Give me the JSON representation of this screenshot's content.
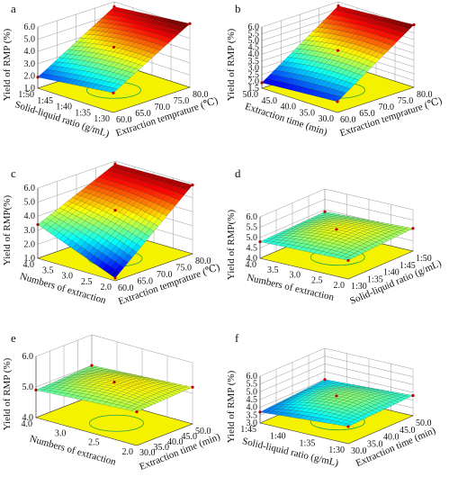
{
  "chart_data": [
    {
      "type": "surface3d",
      "panel_label": "a",
      "zlabel": "Yield of RMP (%)",
      "xlabel": "Solid-liquid ratio (g/mL)",
      "ylabel": "Extraction temprature (℃)",
      "x_ticks": [
        "1:50",
        "1:45",
        "1:40",
        "1:35",
        "1:30"
      ],
      "y_ticks": [
        "60.0",
        "65.0",
        "70.0",
        "75.0",
        "80.0"
      ],
      "z_ticks": [
        "1.0",
        "2.0",
        "3.0",
        "4.0",
        "5.0",
        "6.0"
      ],
      "zlim": [
        1.0,
        6.0
      ],
      "corner_values": {
        "x_lo_y_lo": 1.9,
        "x_hi_y_lo": 2.6,
        "x_lo_y_hi": 5.6,
        "x_hi_y_hi": 6.2
      },
      "curvature": 0.4
    },
    {
      "type": "surface3d",
      "panel_label": "b",
      "zlabel": "Yield of RMP (%)",
      "xlabel": "Extraction time (min)",
      "ylabel": "Extraction temprature (℃)",
      "x_ticks": [
        "50.0",
        "45.0",
        "40.0",
        "35.0",
        "30.0"
      ],
      "y_ticks": [
        "60.0",
        "65.0",
        "70.0",
        "75.0",
        "80.0"
      ],
      "z_ticks": [
        "1.5",
        "2.0",
        "2.5",
        "3.0",
        "3.5",
        "4.0",
        "4.5",
        "5.0",
        "5.5",
        "6.0"
      ],
      "zlim": [
        1.5,
        6.0
      ],
      "corner_values": {
        "x_lo_y_lo": 1.9,
        "x_hi_y_lo": 2.3,
        "x_lo_y_hi": 5.7,
        "x_hi_y_hi": 6.1
      },
      "curvature": 0.4
    },
    {
      "type": "surface3d",
      "panel_label": "c",
      "zlabel": "Yield of RMP(%)",
      "xlabel": "Numbers of extraction",
      "ylabel": "Extraction temprature (℃)",
      "x_ticks": [
        "4.0",
        "3.5",
        "3.0",
        "2.5",
        "2.0"
      ],
      "y_ticks": [
        "60.0",
        "65.0",
        "70.0",
        "75.0",
        "80.0"
      ],
      "z_ticks": [
        "1.0",
        "2.0",
        "3.0",
        "4.0",
        "5.0",
        "6.0"
      ],
      "zlim": [
        1.0,
        6.0
      ],
      "corner_values": {
        "x_lo_y_lo": 3.4,
        "x_hi_y_lo": 1.2,
        "x_lo_y_hi": 5.8,
        "x_hi_y_hi": 5.9
      },
      "curvature": 0.3
    },
    {
      "type": "surface3d",
      "panel_label": "d",
      "zlabel": "Yield of RMP(%)",
      "xlabel": "Numbers of extraction",
      "ylabel": "Solid-liquid ratio (g/mL)",
      "x_ticks": [
        "4.0",
        "3.5",
        "3.0",
        "2.5",
        "2.0"
      ],
      "y_ticks": [
        "1:30",
        "1:35",
        "1:40",
        "1:45",
        "1:50"
      ],
      "z_ticks": [
        "4.0",
        "4.5",
        "5.0",
        "5.5",
        "6.0"
      ],
      "zlim": [
        4.0,
        6.0
      ],
      "corner_values": {
        "x_lo_y_lo": 4.8,
        "x_hi_y_lo": 4.9,
        "x_lo_y_hi": 4.9,
        "x_hi_y_hi": 5.1
      },
      "curvature": 0.5
    },
    {
      "type": "surface3d",
      "panel_label": "e",
      "zlabel": "Yield of RMP (%)",
      "xlabel": "Numbers of extraction",
      "ylabel": "Extraction time (min)",
      "x_ticks": [
        "4.0",
        "3.0",
        "2.5",
        "2.0"
      ],
      "y_ticks": [
        "30.0",
        "35.0",
        "40.0",
        "45.0",
        "50.0"
      ],
      "z_ticks": [
        "4.0",
        "5.0",
        "6.0"
      ],
      "zlim": [
        4.0,
        6.0
      ],
      "corner_values": {
        "x_lo_y_lo": 4.9,
        "x_hi_y_lo": 5.1,
        "x_lo_y_hi": 5.0,
        "x_hi_y_hi": 5.2
      },
      "curvature": 0.35
    },
    {
      "type": "surface3d",
      "panel_label": "f",
      "zlabel": "Yield of RMP (%)",
      "xlabel": "Solid-liquid ratio (g/mL)",
      "ylabel": "Extraction time (min)",
      "x_ticks": [
        "1:45",
        "1:40",
        "1:35",
        "1:30"
      ],
      "y_ticks": [
        "30.0",
        "35.0",
        "40.0",
        "45.0",
        "50.0"
      ],
      "z_ticks": [
        "3.0",
        "3.5",
        "4.0",
        "4.5",
        "5.0",
        "5.5",
        "6.0"
      ],
      "zlim": [
        3.0,
        6.0
      ],
      "corner_values": {
        "x_lo_y_lo": 3.7,
        "x_hi_y_lo": 4.1,
        "x_lo_y_hi": 4.0,
        "x_hi_y_hi": 4.3
      },
      "curvature": 0.8
    }
  ]
}
